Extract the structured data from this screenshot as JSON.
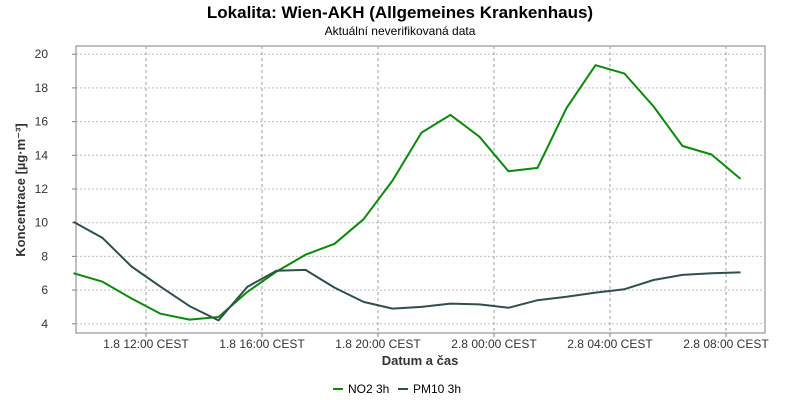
{
  "chart_data": {
    "type": "line",
    "title": "Lokalita: Wien-AKH (Allgemeines Krankenhaus)",
    "subtitle": "Aktuální neverifikovaná data",
    "xlabel": "Datum a čas",
    "ylabel": "Koncentrace [µg·m⁻³]",
    "ylim": [
      3.5,
      20.5
    ],
    "xlim": [
      8.0,
      32.0
    ],
    "y_ticks": [
      4,
      6,
      8,
      10,
      12,
      14,
      16,
      18,
      20
    ],
    "x_ticks": [
      {
        "hour": 12,
        "label": "1.8 12:00 CEST"
      },
      {
        "hour": 16,
        "label": "1.8 16:00 CEST"
      },
      {
        "hour": 20,
        "label": "1.8 20:00 CEST"
      },
      {
        "hour": 24,
        "label": "2.8 00:00 CEST"
      },
      {
        "hour": 28,
        "label": "2.8 04:00 CEST"
      },
      {
        "hour": 32,
        "label": "2.8 08:00 CEST"
      }
    ],
    "grid": true,
    "legend_position": "bottom-center",
    "x": [
      9.5,
      10.5,
      11.5,
      12.5,
      13.5,
      14.5,
      15.5,
      16.5,
      17.5,
      18.5,
      19.5,
      20.5,
      21.5,
      22.5,
      23.5,
      24.5,
      25.5,
      26.5,
      27.5,
      28.5,
      29.5,
      30.5,
      31.5,
      32.5
    ],
    "series": [
      {
        "name": "NO2 3h",
        "color": "#0a8a0a",
        "values": [
          7.0,
          6.5,
          5.5,
          4.6,
          4.25,
          4.4,
          5.9,
          7.1,
          8.1,
          8.75,
          10.2,
          12.5,
          15.35,
          16.4,
          15.1,
          13.05,
          13.25,
          16.8,
          19.35,
          18.85,
          16.9,
          14.55,
          14.05,
          12.6
        ]
      },
      {
        "name": "PM10 3h",
        "color": "#2f4f4f",
        "values": [
          10.05,
          9.1,
          7.4,
          6.2,
          5.05,
          4.2,
          6.2,
          7.15,
          7.2,
          6.15,
          5.3,
          4.9,
          5.0,
          5.2,
          5.15,
          4.95,
          5.4,
          5.6,
          5.85,
          6.05,
          6.6,
          6.9,
          7.0,
          7.05
        ]
      }
    ]
  }
}
